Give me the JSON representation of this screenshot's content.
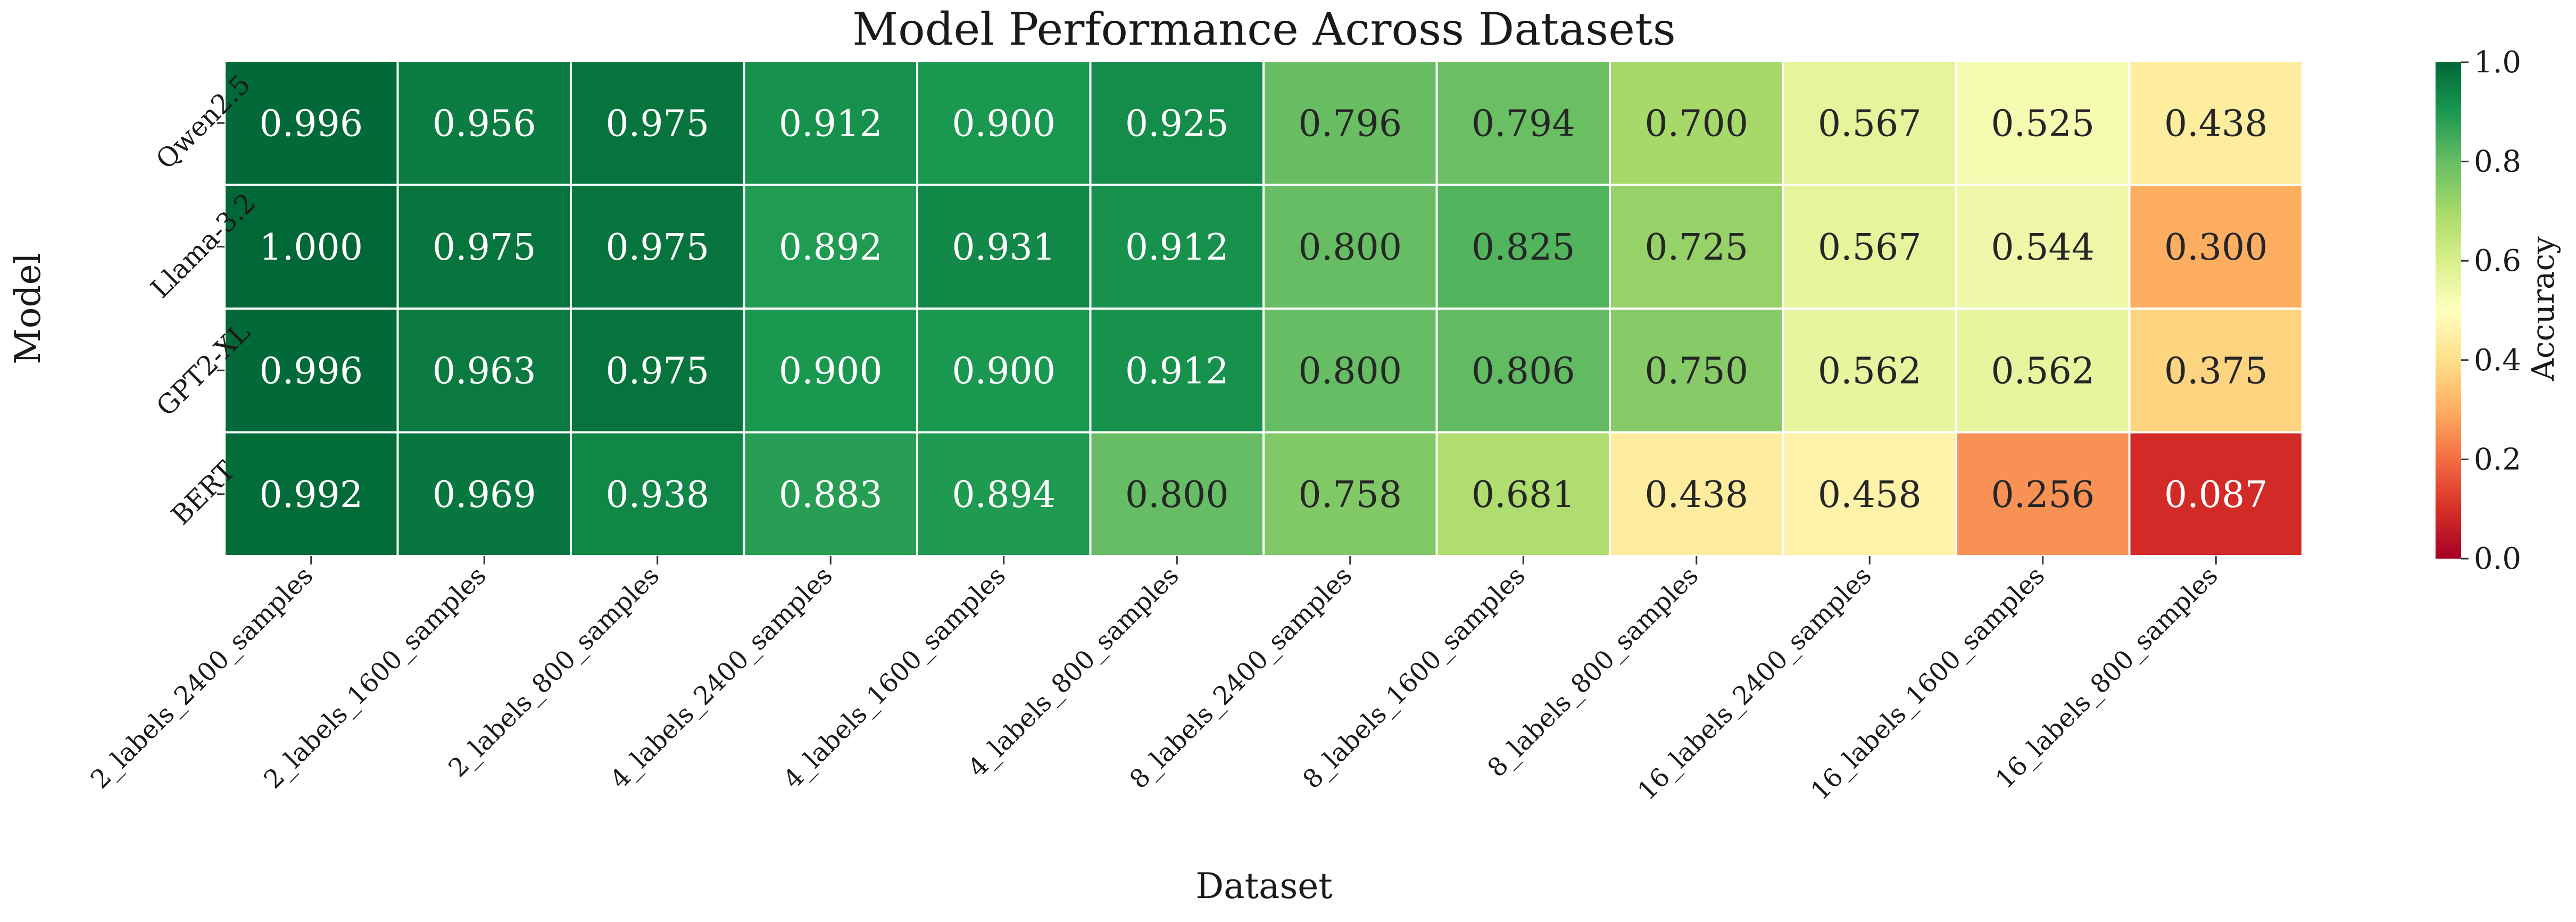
{
  "chart_data": {
    "type": "heatmap",
    "title": "Model Performance Across Datasets",
    "xlabel": "Dataset",
    "ylabel": "Model",
    "colorbar": {
      "label": "Accuracy",
      "range": [
        0.0,
        1.0
      ],
      "ticks": [
        "0.0",
        "0.2",
        "0.4",
        "0.6",
        "0.8",
        "1.0"
      ],
      "colormap": "RdYlGn"
    },
    "columns": [
      "2_labels_2400_samples",
      "2_labels_1600_samples",
      "2_labels_800_samples",
      "4_labels_2400_samples",
      "4_labels_1600_samples",
      "4_labels_800_samples",
      "8_labels_2400_samples",
      "8_labels_1600_samples",
      "8_labels_800_samples",
      "16_labels_2400_samples",
      "16_labels_1600_samples",
      "16_labels_800_samples"
    ],
    "rows": [
      {
        "name": "Qwen2.5",
        "values": [
          0.996,
          0.956,
          0.975,
          0.912,
          0.9,
          0.925,
          0.796,
          0.794,
          0.7,
          0.567,
          0.525,
          0.438
        ]
      },
      {
        "name": "Llama-3.2",
        "values": [
          1.0,
          0.975,
          0.975,
          0.892,
          0.931,
          0.912,
          0.8,
          0.825,
          0.725,
          0.567,
          0.544,
          0.3
        ]
      },
      {
        "name": "GPT2-XL",
        "values": [
          0.996,
          0.963,
          0.975,
          0.9,
          0.9,
          0.912,
          0.8,
          0.806,
          0.75,
          0.562,
          0.562,
          0.375
        ]
      },
      {
        "name": "BERT",
        "values": [
          0.992,
          0.969,
          0.938,
          0.883,
          0.894,
          0.8,
          0.758,
          0.681,
          0.438,
          0.458,
          0.256,
          0.087
        ]
      }
    ]
  }
}
